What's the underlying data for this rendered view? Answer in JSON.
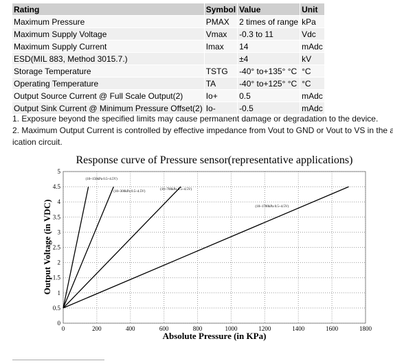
{
  "table": {
    "header": [
      "Rating",
      "Symbol",
      "Value",
      "Unit"
    ],
    "rows": [
      [
        "Maximum Pressure",
        "PMAX",
        "2 times of range",
        "kPa"
      ],
      [
        "Maximum Supply Voltage",
        "Vmax",
        "-0.3 to 11",
        "Vdc"
      ],
      [
        "Maximum Supply Current",
        "Imax",
        "14",
        "mAdc"
      ],
      [
        "ESD(MIL 883, Method 3015.7.)",
        null,
        "±4",
        "kV"
      ],
      [
        "Storage Temperature",
        "TSTG",
        "-40° to+135° °C",
        "°C"
      ],
      [
        "Operating Temperature",
        "TA",
        "-40° to+125° °C",
        "°C"
      ],
      [
        "Output Source Current @ Full Scale Output(2)",
        "Io+",
        "0.5",
        "mAdc"
      ],
      [
        "Output Sink Current @ Minimum Pressure Offset(2)",
        "Io-",
        "-0.5",
        "mAdc"
      ]
    ]
  },
  "notes": [
    "1. Exposure beyond the specified limits may cause permanent damage or degradation to the device.",
    "2. Maximum Output Current is controlled by effective impedance from Vout to GND or Vout to VS in the a",
    "ication circuit."
  ],
  "chart_data": {
    "type": "line",
    "title": "Response curve of Pressure sensor(representative applications)",
    "x_label": "Absolute Pressure (in KPa)",
    "y_label": "Output Voltage (in VDC)",
    "xlim": [
      0,
      1800
    ],
    "xticks": [
      0,
      200,
      400,
      600,
      800,
      1000,
      1200,
      1400,
      1600,
      1800
    ],
    "ylim": [
      0,
      5
    ],
    "yticks": [
      0,
      0.5,
      1,
      1.5,
      2,
      2.5,
      3,
      3.5,
      4,
      4.5,
      5
    ],
    "grid": true,
    "series": [
      {
        "name": "(10~150kPa 0.5~4.5V)",
        "color": "#000000",
        "x": [
          0,
          150
        ],
        "values": [
          0.5,
          4.5
        ]
      },
      {
        "name": "(10~300kPa 0.5~4.5V)",
        "color": "#000000",
        "x": [
          0,
          300
        ],
        "values": [
          0.5,
          4.5
        ]
      },
      {
        "name": "(10~700kPa 0.5~4.5V)",
        "color": "#000000",
        "x": [
          0,
          700
        ],
        "values": [
          0.5,
          4.5
        ]
      },
      {
        "name": "(10~1700kPa 0.5~4.5V)",
        "color": "#000000",
        "x": [
          0,
          1700
        ],
        "values": [
          0.5,
          4.5
        ]
      }
    ]
  }
}
